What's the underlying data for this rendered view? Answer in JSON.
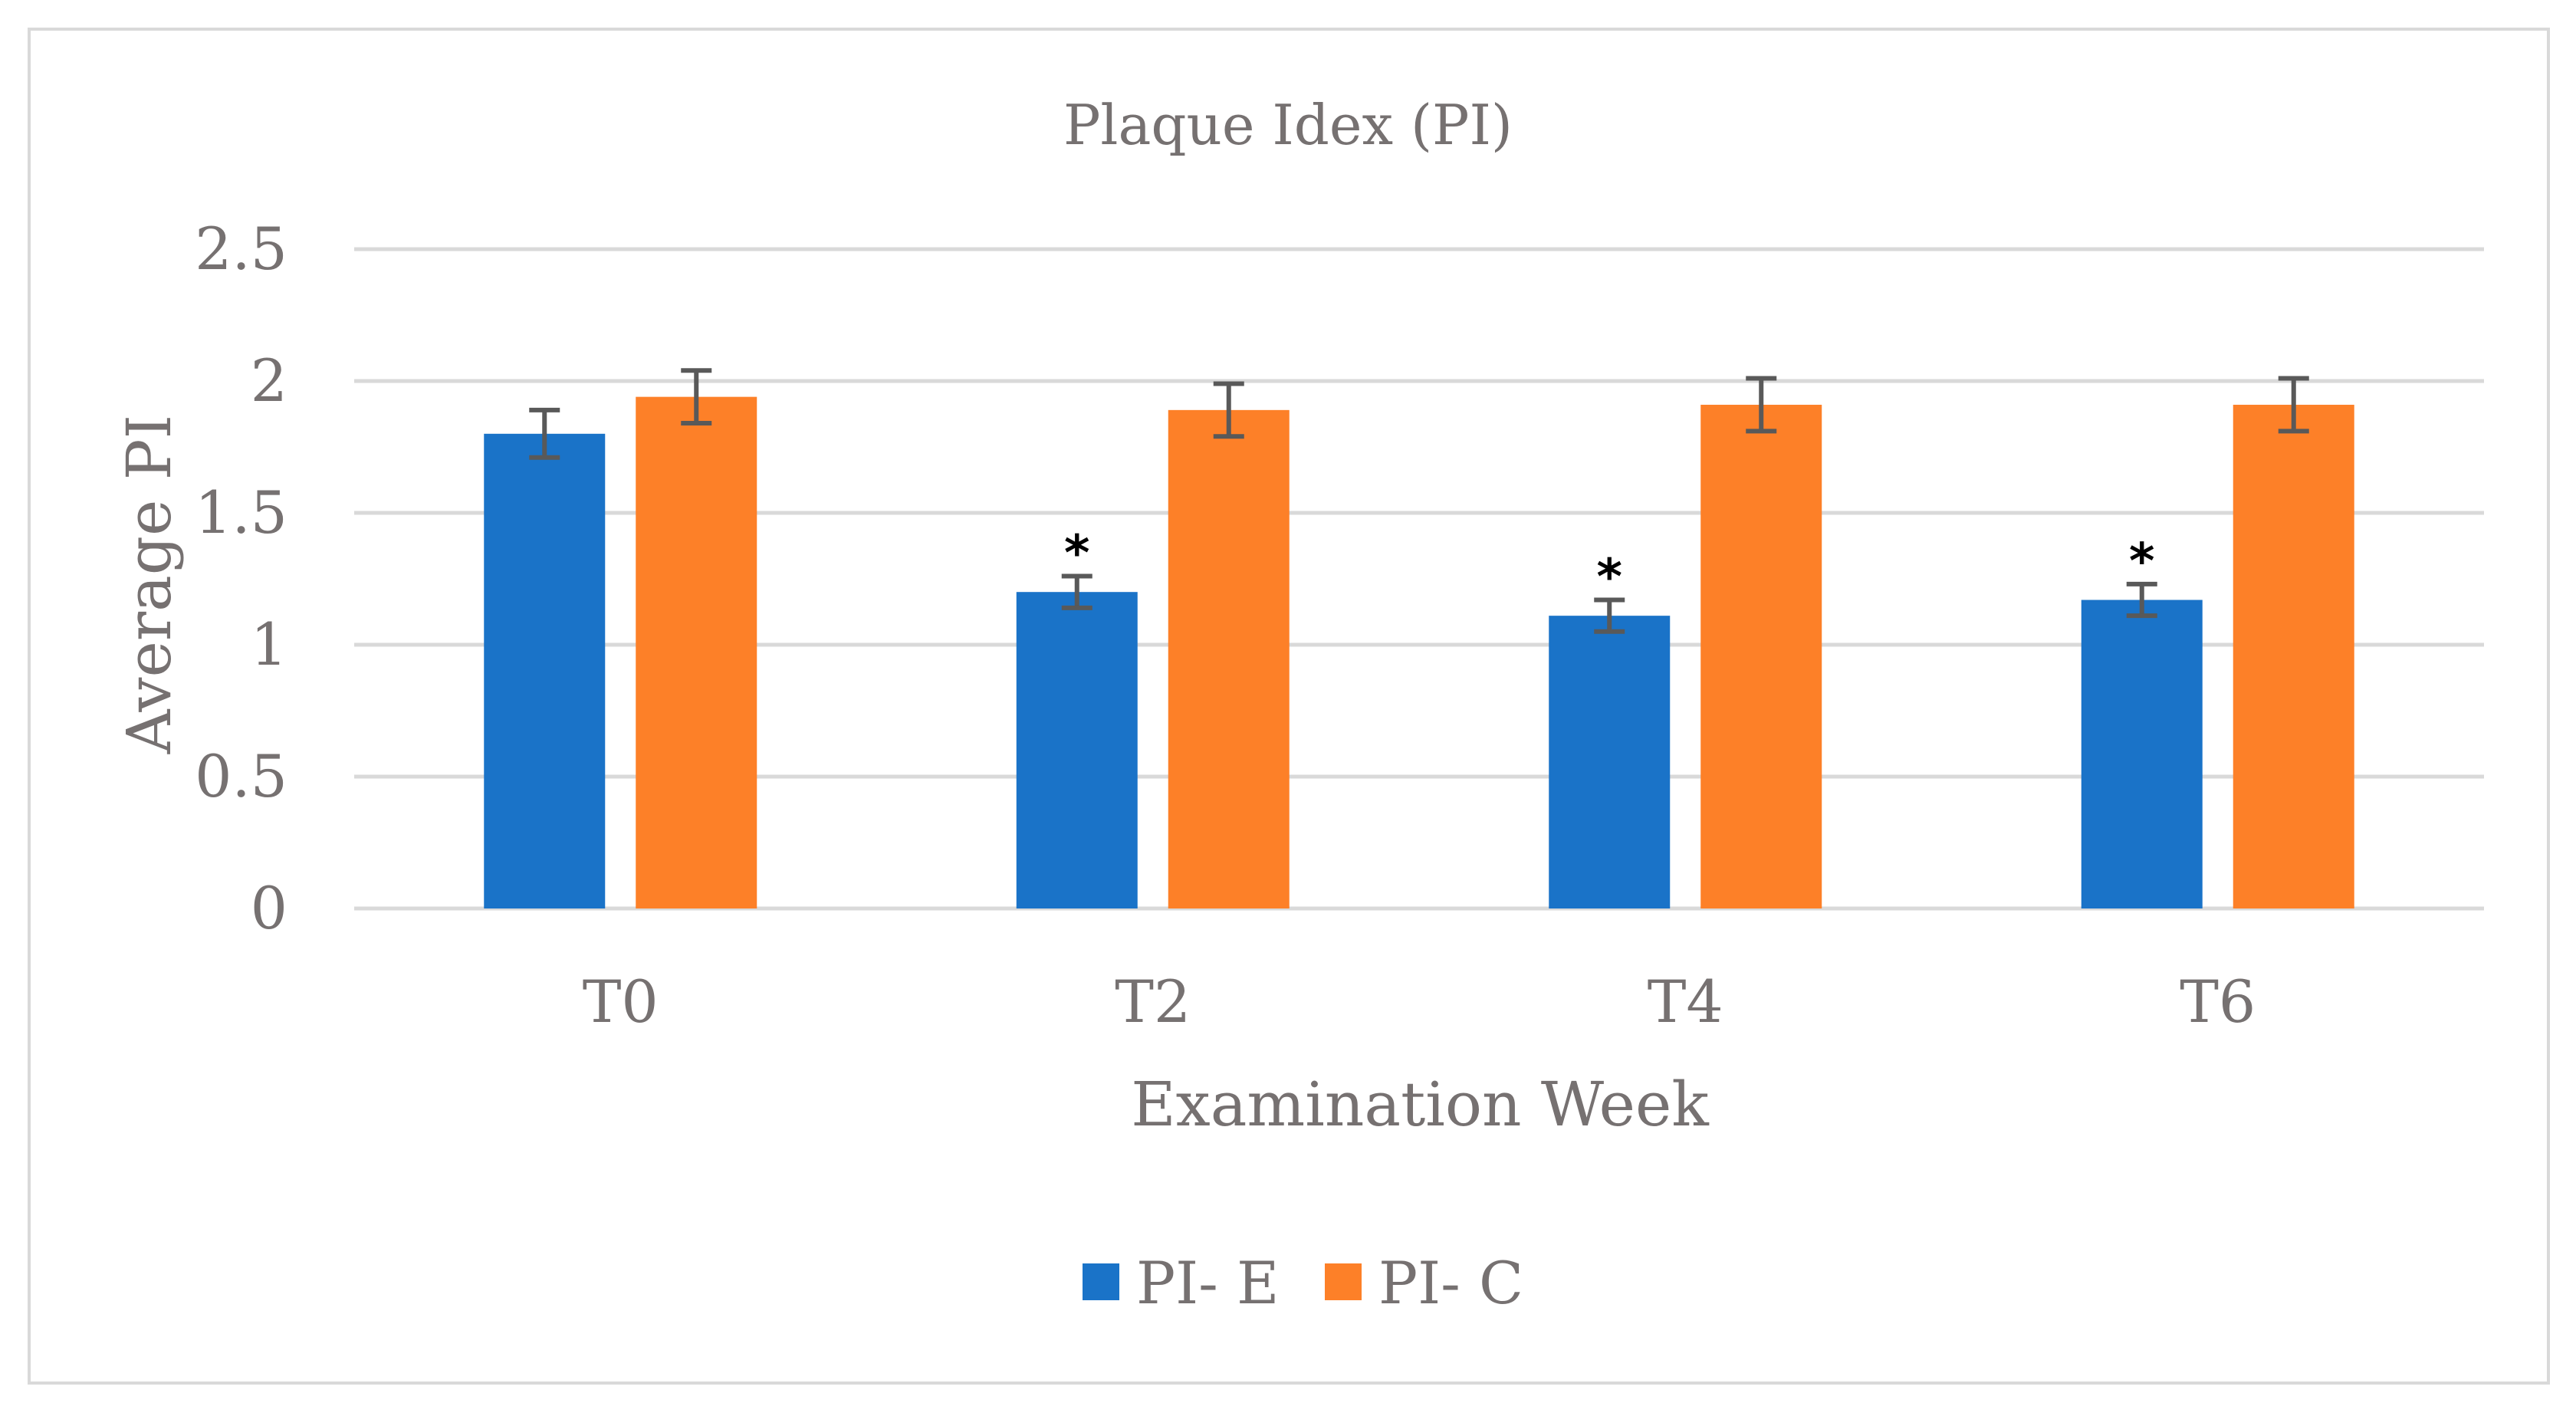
{
  "chart_data": {
    "type": "bar",
    "title": "Plaque Idex (PI)",
    "xlabel": "Examination Week",
    "ylabel": "Average PI",
    "categories": [
      "T0",
      "T2",
      "T4",
      "T6"
    ],
    "ylim": [
      0,
      2.5
    ],
    "yticks": [
      "0",
      "0.5",
      "1",
      "1.5",
      "2",
      "2.5"
    ],
    "grid": true,
    "legend_position": "bottom",
    "series": [
      {
        "name": "PI- E",
        "color": "#1a73c8",
        "values": [
          1.8,
          1.2,
          1.11,
          1.17
        ],
        "errors": [
          0.09,
          0.06,
          0.06,
          0.06
        ],
        "annotations": [
          "",
          "*",
          "*",
          "*"
        ]
      },
      {
        "name": "PI- C",
        "color": "#fd8028",
        "values": [
          1.94,
          1.89,
          1.91,
          1.91
        ],
        "errors": [
          0.1,
          0.1,
          0.1,
          0.1
        ],
        "annotations": [
          "",
          "",
          "",
          ""
        ]
      }
    ],
    "colors": {
      "grid": "#d9d9d9",
      "text": "#767171",
      "error_bar": "#595959"
    }
  }
}
